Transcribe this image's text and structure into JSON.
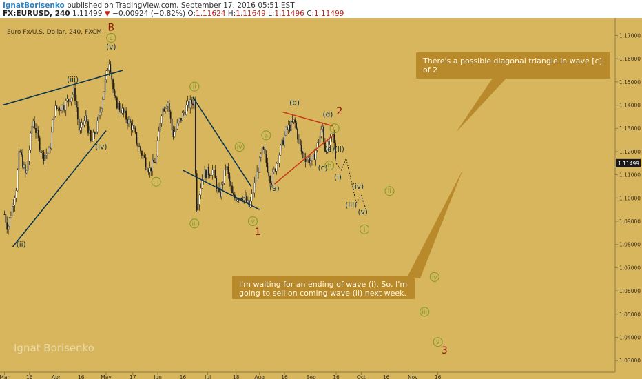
{
  "header": {
    "author": "IgnatBorisenko",
    "published": "published on TradingView.com, September 17, 2016 05:51 EST",
    "symbol": "FX:EURUSD, 240",
    "last": "1.11499",
    "arrow": "▼",
    "change": "−0.00924 (−0.82%)",
    "o_label": "O:",
    "o_val": "1.11624",
    "h_label": "H:",
    "h_val": "1.11649",
    "l_label": "L:",
    "l_val": "1.11496",
    "c_label": "C:",
    "c_val": "1.11499"
  },
  "colors": {
    "background": "#d8b65e",
    "line": "#0b3550",
    "red_line": "#c83a1c",
    "red_label": "#8a1a08",
    "green_circle": "#7b9a26",
    "candles": "#1a1a1a",
    "price_tag": "#1a1a1a"
  },
  "chart_data": {
    "type": "candlestick",
    "title": "Euro Fx/U.S. Dollar, 240, FXCM",
    "watermark": "Ignat Borisenko",
    "ylim": [
      1.025,
      1.174
    ],
    "y_ticks": [
      "1.17000",
      "1.16000",
      "1.15000",
      "1.14000",
      "1.13000",
      "1.12000",
      "1.11000",
      "1.10000",
      "1.09000",
      "1.08000",
      "1.07000",
      "1.06000",
      "1.05000",
      "1.04000",
      "1.03000"
    ],
    "x_ticks": [
      "Mar",
      "16",
      "Apr",
      "16",
      "May",
      "17",
      "Jun",
      "16",
      "Jul",
      "18",
      "Aug",
      "16",
      "Sep",
      "16",
      "Oct",
      "16",
      "Nov",
      "16"
    ],
    "last_price_tag": "1.11499",
    "price_path": [
      [
        "Mar 01",
        1.093
      ],
      [
        "Mar 03",
        1.087
      ],
      [
        "Mar 08",
        1.104
      ],
      [
        "Mar 10",
        1.121
      ],
      [
        "Mar 14",
        1.109
      ],
      [
        "Mar 18",
        1.134
      ],
      [
        "Mar 24",
        1.118
      ],
      [
        "Mar 28",
        1.12
      ],
      [
        "Mar 31",
        1.138
      ],
      [
        "Apr 06",
        1.14
      ],
      [
        "Apr 12",
        1.146
      ],
      [
        "Apr 15",
        1.128
      ],
      [
        "Apr 19",
        1.135
      ],
      [
        "Apr 22",
        1.123
      ],
      [
        "Apr 26",
        1.132
      ],
      [
        "May 03",
        1.16
      ],
      [
        "May 06",
        1.142
      ],
      [
        "May 10",
        1.138
      ],
      [
        "May 17",
        1.13
      ],
      [
        "May 20",
        1.123
      ],
      [
        "May 27",
        1.112
      ],
      [
        "May 31",
        1.117
      ],
      [
        "Jun 03",
        1.137
      ],
      [
        "Jun 07",
        1.142
      ],
      [
        "Jun 10",
        1.127
      ],
      [
        "Jun 14",
        1.133
      ],
      [
        "Jun 18",
        1.139
      ],
      [
        "Jun 23",
        1.142
      ],
      [
        "Jun 24",
        1.095
      ],
      [
        "Jun 28",
        1.11
      ],
      [
        "Jul 04",
        1.112
      ],
      [
        "Jul 08",
        1.1
      ],
      [
        "Jul 12",
        1.114
      ],
      [
        "Jul 16",
        1.1
      ],
      [
        "Jul 22",
        1.101
      ],
      [
        "Jul 26",
        1.096
      ],
      [
        "Aug 01",
        1.115
      ],
      [
        "Aug 03",
        1.121
      ],
      [
        "Aug 08",
        1.107
      ],
      [
        "Aug 12",
        1.117
      ],
      [
        "Aug 17",
        1.129
      ],
      [
        "Aug 22",
        1.133
      ],
      [
        "Aug 26",
        1.12
      ],
      [
        "Aug 29",
        1.117
      ],
      [
        "Sep 02",
        1.116
      ],
      [
        "Sep 06",
        1.126
      ],
      [
        "Sep 08",
        1.131
      ],
      [
        "Sep 09",
        1.121
      ],
      [
        "Sep 12",
        1.123
      ],
      [
        "Sep 14",
        1.127
      ],
      [
        "Sep 15",
        1.122
      ],
      [
        "Sep 16",
        1.115
      ]
    ],
    "projection": [
      [
        "Sep 16",
        1.115
      ],
      [
        "Sep 19",
        1.112
      ],
      [
        "Sep 22",
        1.117
      ],
      [
        "Sep 28",
        1.098
      ],
      [
        "Oct 01",
        1.101
      ],
      [
        "Oct 04",
        1.095
      ]
    ]
  },
  "annotations": {
    "bubble_top": "There's a possible diagonal triangle in wave [c] of 2",
    "bubble_bottom": "I'm waiting for an ending of wave (i). So, I'm going to sell on coming wave (ii) next week.",
    "labels_red": [
      "B",
      "2",
      "1",
      "3"
    ],
    "labels_dark": [
      "(v)",
      "(iii)",
      "(iv)",
      "(ii)",
      "(b)",
      "(d)",
      "(e)",
      "(c)",
      "(a)",
      "(ii)",
      "(i)",
      "(iv)",
      "(iii)",
      "(v)"
    ],
    "labels_circle": [
      "c",
      "ii",
      "iv",
      "i",
      "iii",
      "v",
      "a",
      "c",
      "b",
      "ii",
      "i",
      "iv",
      "iii",
      "v"
    ]
  }
}
